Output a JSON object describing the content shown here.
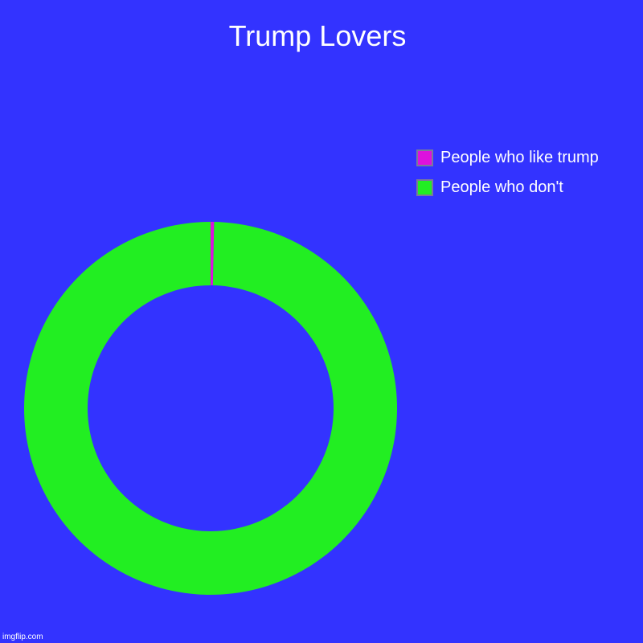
{
  "chart_data": {
    "type": "pie",
    "variant": "donut",
    "title": "Trump Lovers",
    "slices": [
      {
        "label": "People who like trump",
        "value": 0.3,
        "color": "#dd11dd"
      },
      {
        "label": "People who don't",
        "value": 99.7,
        "color": "#22ee22"
      }
    ],
    "legend_position": "top-right"
  },
  "watermark": "imgflip.com",
  "colors": {
    "background": "#3333ff"
  }
}
